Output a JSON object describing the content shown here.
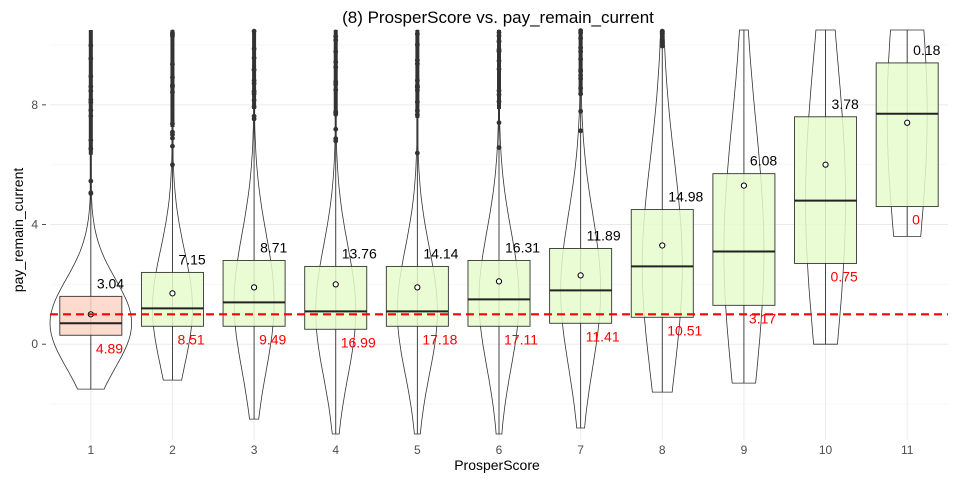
{
  "chart_data": {
    "type": "box",
    "title": "(8) ProsperScore vs. pay_remain_current",
    "xlabel": "ProsperScore",
    "ylabel": "pay_remain_current",
    "categories": [
      "1",
      "2",
      "3",
      "4",
      "5",
      "6",
      "7",
      "8",
      "9",
      "10",
      "11"
    ],
    "yticks": [
      0,
      4,
      8
    ],
    "ylim": [
      -3.2,
      10.5
    ],
    "reference_line": 1,
    "colors": {
      "box_highlight": "#fcd5c5",
      "box_default": "#e6fccc",
      "reference_line": "#ff0000",
      "upper_label": "#000000",
      "lower_label": "#ff0000",
      "grid": "#ebebeb"
    },
    "boxes": [
      {
        "category": "1",
        "q1": 0.3,
        "median": 0.7,
        "q3": 1.6,
        "mean": 1.0,
        "whisker_low": -1.5,
        "whisker_high": 9.5,
        "upper_label": "3.04",
        "lower_label": "4.89",
        "highlight": true
      },
      {
        "category": "2",
        "q1": 0.6,
        "median": 1.2,
        "q3": 2.4,
        "mean": 1.7,
        "whisker_low": -1.2,
        "whisker_high": 10.5,
        "upper_label": "7.15",
        "lower_label": "8.51",
        "highlight": false
      },
      {
        "category": "3",
        "q1": 0.6,
        "median": 1.4,
        "q3": 2.8,
        "mean": 1.9,
        "whisker_low": -2.5,
        "whisker_high": 10.5,
        "upper_label": "8.71",
        "lower_label": "9.49",
        "highlight": false
      },
      {
        "category": "4",
        "q1": 0.5,
        "median": 1.1,
        "q3": 2.6,
        "mean": 2.0,
        "whisker_low": -3.0,
        "whisker_high": 10.5,
        "upper_label": "13.76",
        "lower_label": "16.99",
        "highlight": false
      },
      {
        "category": "5",
        "q1": 0.6,
        "median": 1.1,
        "q3": 2.6,
        "mean": 1.9,
        "whisker_low": -3.0,
        "whisker_high": 10.5,
        "upper_label": "14.14",
        "lower_label": "17.18",
        "highlight": false
      },
      {
        "category": "6",
        "q1": 0.6,
        "median": 1.5,
        "q3": 2.8,
        "mean": 2.1,
        "whisker_low": -3.0,
        "whisker_high": 10.5,
        "upper_label": "16.31",
        "lower_label": "17.11",
        "highlight": false
      },
      {
        "category": "7",
        "q1": 0.7,
        "median": 1.8,
        "q3": 3.2,
        "mean": 2.3,
        "whisker_low": -2.8,
        "whisker_high": 10.5,
        "upper_label": "11.89",
        "lower_label": "11.41",
        "highlight": false
      },
      {
        "category": "8",
        "q1": 0.9,
        "median": 2.6,
        "q3": 4.5,
        "mean": 3.3,
        "whisker_low": -1.6,
        "whisker_high": 10.5,
        "upper_label": "14.98",
        "lower_label": "10.51",
        "highlight": false
      },
      {
        "category": "9",
        "q1": 1.3,
        "median": 3.1,
        "q3": 5.7,
        "mean": 5.3,
        "whisker_low": -1.3,
        "whisker_high": 10.5,
        "upper_label": "6.08",
        "lower_label": "3.17",
        "highlight": false
      },
      {
        "category": "10",
        "q1": 2.7,
        "median": 4.8,
        "q3": 7.6,
        "mean": 6.0,
        "whisker_low": 0.0,
        "whisker_high": 10.5,
        "upper_label": "3.78",
        "lower_label": "0.75",
        "highlight": false
      },
      {
        "category": "11",
        "q1": 4.6,
        "median": 7.7,
        "q3": 9.4,
        "mean": 7.4,
        "whisker_low": 3.6,
        "whisker_high": 10.5,
        "upper_label": "0.18",
        "lower_label": "0",
        "highlight": false
      }
    ]
  }
}
